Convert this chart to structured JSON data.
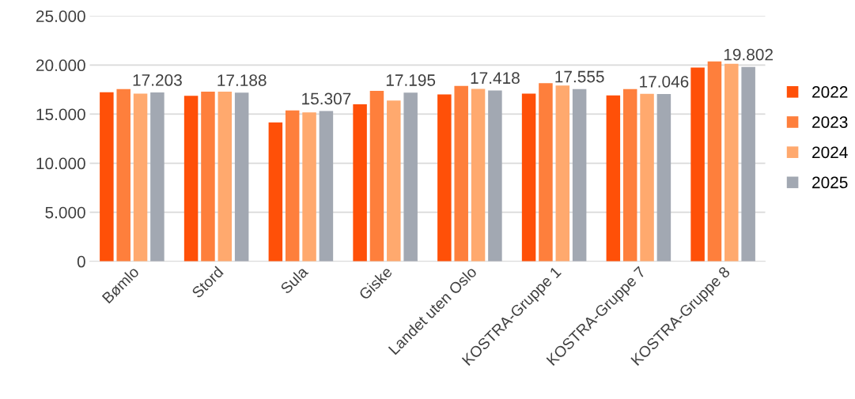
{
  "chart_data": {
    "type": "bar",
    "categories": [
      "Bømlo",
      "Stord",
      "Sula",
      "Giske",
      "Landet uten Oslo",
      "KOSTRA-Gruppe 1",
      "KOSTRA-Gruppe 7",
      "KOSTRA-Gruppe 8"
    ],
    "series": [
      {
        "name": "2022",
        "color": "#ff5008",
        "values": [
          17230,
          16870,
          14150,
          16000,
          17000,
          17090,
          16900,
          19750
        ]
      },
      {
        "name": "2023",
        "color": "#fe7f3c",
        "values": [
          17550,
          17280,
          15370,
          17360,
          17880,
          18150,
          17560,
          20370
        ]
      },
      {
        "name": "2024",
        "color": "#ffa96e",
        "values": [
          17090,
          17290,
          15180,
          16380,
          17580,
          17910,
          17070,
          20130
        ]
      },
      {
        "name": "2025",
        "color": "#a2a8b2",
        "values": [
          17203,
          17188,
          15307,
          17195,
          17418,
          17555,
          17046,
          19802
        ],
        "value_labels": [
          "17.203",
          "17.188",
          "15.307",
          "17.195",
          "17.418",
          "17.555",
          "17.046",
          "19.802"
        ]
      }
    ],
    "ylim": [
      0,
      25000
    ],
    "yticks": [
      {
        "value": 0,
        "label": "0"
      },
      {
        "value": 5000,
        "label": "5.000"
      },
      {
        "value": 10000,
        "label": "10.000"
      },
      {
        "value": 15000,
        "label": "15.000"
      },
      {
        "value": 20000,
        "label": "20.000"
      },
      {
        "value": 25000,
        "label": "25.000"
      }
    ],
    "grid": "y",
    "legend": "right"
  }
}
